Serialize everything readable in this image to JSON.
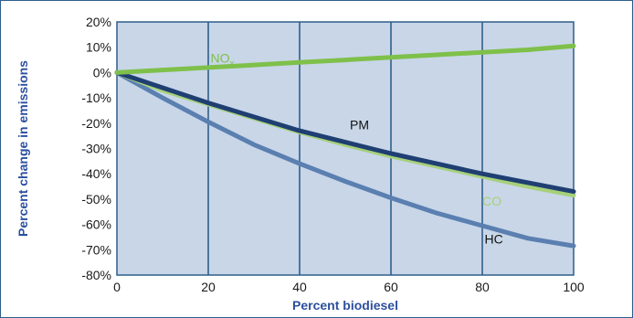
{
  "chart_data": {
    "type": "line",
    "xlabel": "Percent biodiesel",
    "ylabel": "Percent change in emissions",
    "xlim": [
      0,
      100
    ],
    "ylim": [
      -80,
      20
    ],
    "x_ticks": [
      "0",
      "20",
      "40",
      "60",
      "80",
      "100"
    ],
    "y_ticks": [
      "20%",
      "10%",
      "0%",
      "-10%",
      "-20%",
      "-30%",
      "-40%",
      "-50%",
      "-60%",
      "-70%",
      "-80%"
    ],
    "grid": "vertical",
    "colors": {
      "frame": "#2e5f8a",
      "grid": "#2e5f8a",
      "plot_background": "#c8d6e8",
      "axis_title": "#2c4f9e",
      "nox": "#7fc04a",
      "pm": "#1f3f73",
      "co": "#a7d07a",
      "hc": "#5a7fb0"
    },
    "series": [
      {
        "name": "NOx",
        "label_main": "NO",
        "label_sub": "x",
        "color_key": "nox",
        "x": [
          0,
          10,
          20,
          30,
          40,
          50,
          60,
          70,
          80,
          90,
          100
        ],
        "y": [
          0,
          1,
          2,
          3,
          4,
          5,
          6,
          7,
          8,
          9,
          10.5
        ]
      },
      {
        "name": "PM",
        "label_main": "PM",
        "color_key": "pm",
        "x": [
          0,
          10,
          20,
          30,
          40,
          50,
          60,
          70,
          80,
          90,
          100
        ],
        "y": [
          0,
          -6,
          -12,
          -17.5,
          -23,
          -27.5,
          -32,
          -36,
          -40,
          -43.5,
          -47
        ]
      },
      {
        "name": "CO",
        "label_main": "CO",
        "color_key": "co",
        "x": [
          0,
          10,
          20,
          30,
          40,
          50,
          60,
          70,
          80,
          90,
          100
        ],
        "y": [
          0,
          -7,
          -12.5,
          -18,
          -23.5,
          -28.5,
          -33,
          -37,
          -41,
          -45,
          -48.5
        ]
      },
      {
        "name": "HC",
        "label_main": "HC",
        "color_key": "hc",
        "x": [
          0,
          10,
          20,
          30,
          40,
          50,
          60,
          70,
          80,
          90,
          100
        ],
        "y": [
          0,
          -10,
          -19.5,
          -28.5,
          -36,
          -43,
          -49.5,
          -55.5,
          -60.5,
          -65.5,
          -68.5
        ]
      }
    ]
  }
}
